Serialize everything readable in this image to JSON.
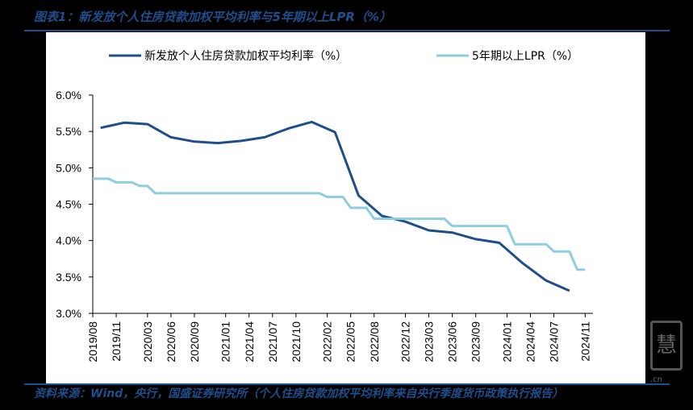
{
  "figure": {
    "title": "图表1：新发放个人住房贷款加权平均利率与5年期以上LPR（%）",
    "source": "资料来源：Wind，央行，国盛证券研究所（个人住房贷款加权平均利率来自央行季度货币政策执行报告）",
    "watermark": "慧",
    "watermark_url": ".cn"
  },
  "colors": {
    "series_mortgage": "#1f4e8c",
    "series_lpr": "#8fcde0",
    "axis": "#000000",
    "title": "#1f4e8c"
  },
  "chart_data": {
    "type": "line",
    "title": "",
    "xlabel": "",
    "ylabel": "",
    "ylim": [
      3.0,
      6.0
    ],
    "yticks": [
      3.0,
      3.5,
      4.0,
      4.5,
      5.0,
      5.5,
      6.0
    ],
    "ytick_labels": [
      "3.0%",
      "3.5%",
      "4.0%",
      "4.5%",
      "5.0%",
      "5.5%",
      "6.0%"
    ],
    "xlim": [
      "2019/08",
      "2024/12"
    ],
    "xtick_labels": [
      "2019/08",
      "2019/11",
      "2020/03",
      "2020/06",
      "2020/09",
      "2021/01",
      "2021/04",
      "2021/07",
      "2021/10",
      "2022/02",
      "2022/05",
      "2022/08",
      "2022/12",
      "2023/03",
      "2023/06",
      "2023/09",
      "2024/01",
      "2024/04",
      "2024/07",
      "2024/11"
    ],
    "legend_position": "top",
    "series": [
      {
        "name": "新发放个人住房贷款加权平均利率（%）",
        "points": [
          [
            "2019/09",
            5.55
          ],
          [
            "2019/12",
            5.62
          ],
          [
            "2020/03",
            5.6
          ],
          [
            "2020/06",
            5.42
          ],
          [
            "2020/09",
            5.36
          ],
          [
            "2020/12",
            5.34
          ],
          [
            "2021/03",
            5.37
          ],
          [
            "2021/06",
            5.42
          ],
          [
            "2021/09",
            5.54
          ],
          [
            "2021/12",
            5.63
          ],
          [
            "2022/03",
            5.49
          ],
          [
            "2022/06",
            4.62
          ],
          [
            "2022/09",
            4.34
          ],
          [
            "2022/12",
            4.26
          ],
          [
            "2023/03",
            4.14
          ],
          [
            "2023/06",
            4.11
          ],
          [
            "2023/09",
            4.02
          ],
          [
            "2023/12",
            3.97
          ],
          [
            "2024/03",
            3.69
          ],
          [
            "2024/06",
            3.45
          ],
          [
            "2024/09",
            3.31
          ]
        ]
      },
      {
        "name": "5年期以上LPR（%）",
        "points": [
          [
            "2019/08",
            4.85
          ],
          [
            "2019/10",
            4.85
          ],
          [
            "2019/11",
            4.8
          ],
          [
            "2020/01",
            4.8
          ],
          [
            "2020/02",
            4.75
          ],
          [
            "2020/03",
            4.75
          ],
          [
            "2020/04",
            4.65
          ],
          [
            "2022/01",
            4.65
          ],
          [
            "2022/02",
            4.6
          ],
          [
            "2022/04",
            4.6
          ],
          [
            "2022/05",
            4.45
          ],
          [
            "2022/07",
            4.45
          ],
          [
            "2022/08",
            4.3
          ],
          [
            "2023/05",
            4.3
          ],
          [
            "2023/06",
            4.2
          ],
          [
            "2024/01",
            4.2
          ],
          [
            "2024/02",
            3.95
          ],
          [
            "2024/06",
            3.95
          ],
          [
            "2024/07",
            3.85
          ],
          [
            "2024/09",
            3.85
          ],
          [
            "2024/10",
            3.6
          ],
          [
            "2024/11",
            3.6
          ]
        ]
      }
    ]
  }
}
